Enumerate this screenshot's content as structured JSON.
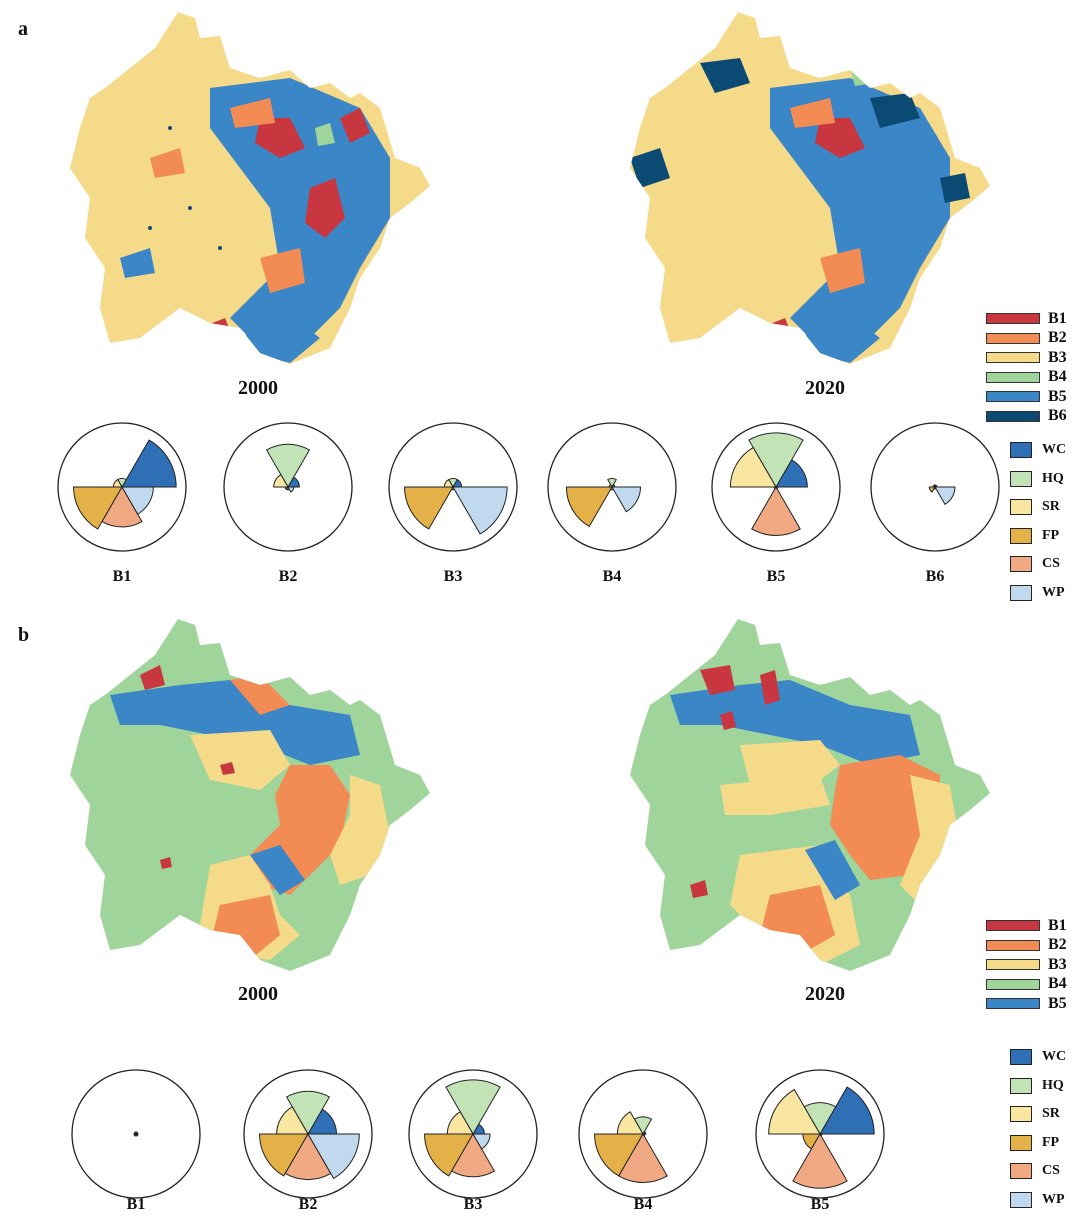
{
  "panels": {
    "a": {
      "label": "a",
      "map_years": [
        "2000",
        "2020"
      ],
      "bundles": [
        {
          "name": "B1",
          "color": "#c8363f"
        },
        {
          "name": "B2",
          "color": "#f28b54"
        },
        {
          "name": "B3",
          "color": "#f5da8a"
        },
        {
          "name": "B4",
          "color": "#9fd49a"
        },
        {
          "name": "B5",
          "color": "#3b86c6"
        },
        {
          "name": "B6",
          "color": "#0b4a72"
        }
      ],
      "rose_charts": [
        {
          "name": "B1",
          "values": {
            "WC": 0.95,
            "HQ": 0.15,
            "SR": 0.15,
            "FP": 0.85,
            "CS": 0.7,
            "WP": 0.55
          }
        },
        {
          "name": "B2",
          "values": {
            "WC": 0.2,
            "HQ": 0.75,
            "SR": 0.25,
            "FP": 0.05,
            "CS": 0.05,
            "WP": 0.1
          }
        },
        {
          "name": "B3",
          "values": {
            "WC": 0.15,
            "HQ": 0.15,
            "SR": 0.15,
            "FP": 0.85,
            "CS": 0.05,
            "WP": 0.95
          }
        },
        {
          "name": "B4",
          "values": {
            "WC": 0.05,
            "HQ": 0.15,
            "SR": 0.05,
            "FP": 0.8,
            "CS": 0.05,
            "WP": 0.5
          }
        },
        {
          "name": "B5",
          "values": {
            "WC": 0.55,
            "HQ": 0.95,
            "SR": 0.8,
            "FP": 0.02,
            "CS": 0.85,
            "WP": 0.02
          }
        },
        {
          "name": "B6",
          "values": {
            "WC": 0.02,
            "HQ": 0.02,
            "SR": 0.02,
            "FP": 0.1,
            "CS": 0.02,
            "WP": 0.35
          }
        }
      ]
    },
    "b": {
      "label": "b",
      "map_years": [
        "2000",
        "2020"
      ],
      "bundles": [
        {
          "name": "B1",
          "color": "#c8363f"
        },
        {
          "name": "B2",
          "color": "#f28b54"
        },
        {
          "name": "B3",
          "color": "#f5da8a"
        },
        {
          "name": "B4",
          "color": "#9fd49a"
        },
        {
          "name": "B5",
          "color": "#3b86c6"
        }
      ],
      "rose_charts": [
        {
          "name": "B1",
          "values": {
            "WC": 0.02,
            "HQ": 0.02,
            "SR": 0.02,
            "FP": 0.03,
            "CS": 0.03,
            "WP": 0.02
          }
        },
        {
          "name": "B2",
          "values": {
            "WC": 0.5,
            "HQ": 0.75,
            "SR": 0.55,
            "FP": 0.85,
            "CS": 0.8,
            "WP": 0.9
          }
        },
        {
          "name": "B3",
          "values": {
            "WC": 0.2,
            "HQ": 0.95,
            "SR": 0.45,
            "FP": 0.85,
            "CS": 0.75,
            "WP": 0.3
          }
        },
        {
          "name": "B4",
          "values": {
            "WC": 0.05,
            "HQ": 0.3,
            "SR": 0.45,
            "FP": 0.85,
            "CS": 0.85,
            "WP": 0.02
          }
        },
        {
          "name": "B5",
          "values": {
            "WC": 0.95,
            "HQ": 0.55,
            "SR": 0.9,
            "FP": 0.3,
            "CS": 0.95,
            "WP": 0.02
          }
        }
      ]
    }
  },
  "indicators": [
    {
      "code": "WC",
      "color": "#2f6fb5"
    },
    {
      "code": "HQ",
      "color": "#c2e3b6"
    },
    {
      "code": "SR",
      "color": "#f9e6a0"
    },
    {
      "code": "FP",
      "color": "#e4b048"
    },
    {
      "code": "CS",
      "color": "#f0a982"
    },
    {
      "code": "WP",
      "color": "#c0d9ef"
    }
  ]
}
